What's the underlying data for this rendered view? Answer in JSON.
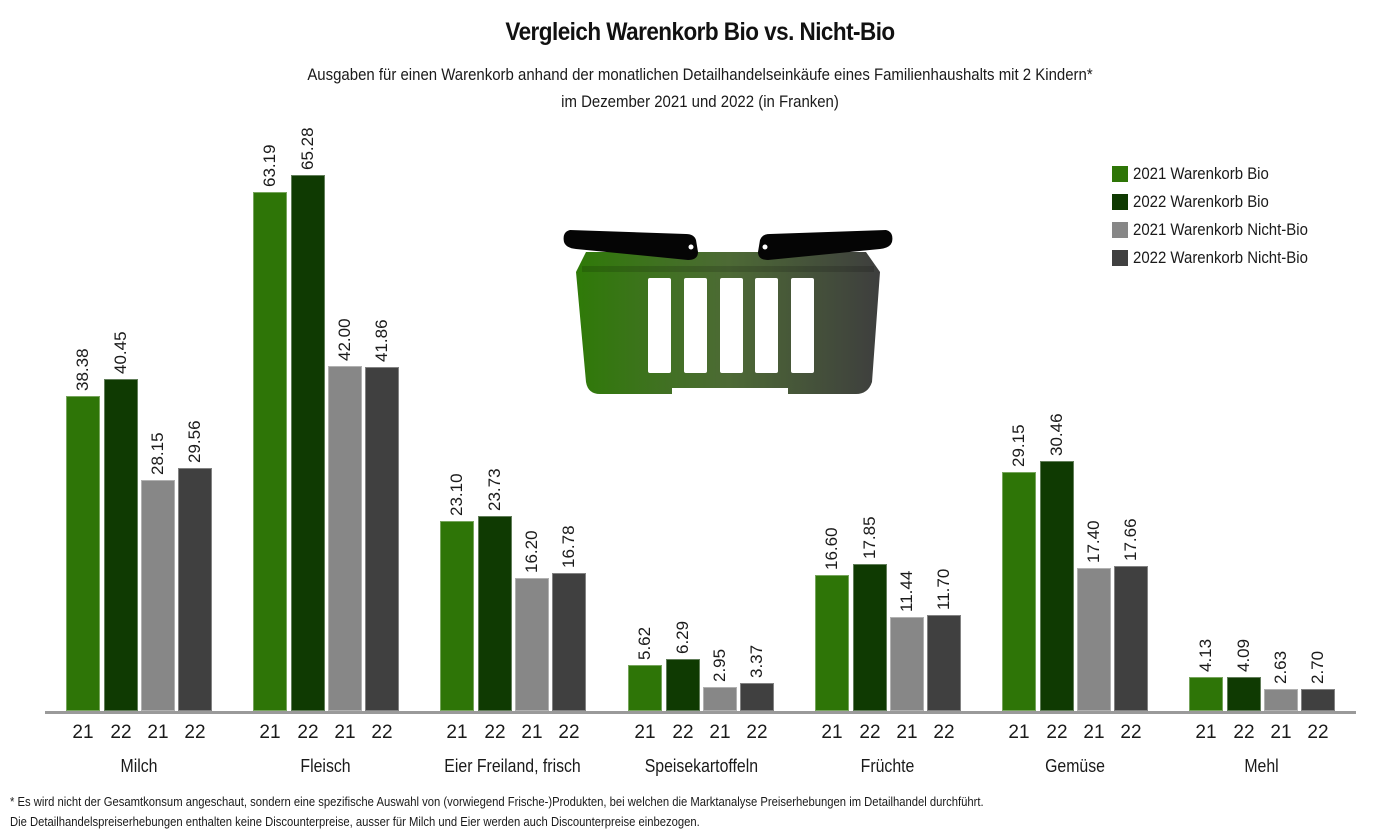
{
  "header": {
    "title": "Vergleich Warenkorb Bio vs. Nicht-Bio",
    "subtitle_line1": "Ausgaben für einen Warenkorb anhand der monatlichen Detailhandelseinkäufe eines Familienhaushalts mit 2 Kindern*",
    "subtitle_line2": "im Dezember 2021 und 2022 (in Franken)"
  },
  "legend": [
    {
      "label": "2021 Warenkorb Bio",
      "color": "#2e7507"
    },
    {
      "label": "2022 Warenkorb Bio",
      "color": "#0f3a02"
    },
    {
      "label": "2021 Warenkorb Nicht-Bio",
      "color": "#878787"
    },
    {
      "label": "2022 Warenkorb Nicht-Bio",
      "color": "#404040"
    }
  ],
  "illustration": {
    "icon": "shopping-basket-icon",
    "colors": [
      "#2e7507",
      "#404040"
    ]
  },
  "footnotes": {
    "line1": "* Es wird nicht der Gesamtkonsum angeschaut, sondern eine spezifische Auswahl von (vorwiegend Frische-)Produkten, bei welchen die Marktanalyse Preiserhebungen im Detailhandel durchführt.",
    "line2": "Die Detailhandelspreiserhebungen enthalten keine Discounterpreise, ausser für Milch und Eier werden auch Discounterpreise einbezogen."
  },
  "chart_data": {
    "type": "bar",
    "title": "Vergleich Warenkorb Bio vs. Nicht-Bio",
    "subtitle": "Ausgaben für einen Warenkorb anhand der monatlichen Detailhandelseinkäufe eines Familienhaushalts mit 2 Kindern* im Dezember 2021 und 2022 (in Franken)",
    "xlabel": "",
    "ylabel": "",
    "categories": [
      "Milch",
      "Fleisch",
      "Eier Freiland, frisch",
      "Speisekartoffeln",
      "Früchte",
      "Gemüse",
      "Mehl"
    ],
    "sub_tick_labels": [
      "21",
      "22",
      "21",
      "22"
    ],
    "series": [
      {
        "name": "2021 Warenkorb Bio",
        "color": "#2e7507",
        "values": [
          38.38,
          63.19,
          23.1,
          5.62,
          16.6,
          29.15,
          4.13
        ]
      },
      {
        "name": "2022 Warenkorb Bio",
        "color": "#0f3a02",
        "values": [
          40.45,
          65.28,
          23.73,
          6.29,
          17.85,
          30.46,
          4.09
        ]
      },
      {
        "name": "2021 Warenkorb Nicht-Bio",
        "color": "#878787",
        "values": [
          28.15,
          42.0,
          16.2,
          2.95,
          11.44,
          17.4,
          2.63
        ]
      },
      {
        "name": "2022 Warenkorb Nicht-Bio",
        "color": "#404040",
        "values": [
          29.56,
          41.86,
          16.78,
          3.37,
          11.7,
          17.66,
          2.7
        ]
      }
    ],
    "value_labels": "rotated vertical, 2 decimals",
    "ylim": [
      0,
      70
    ],
    "grid": false,
    "legend_position": "top-right"
  }
}
